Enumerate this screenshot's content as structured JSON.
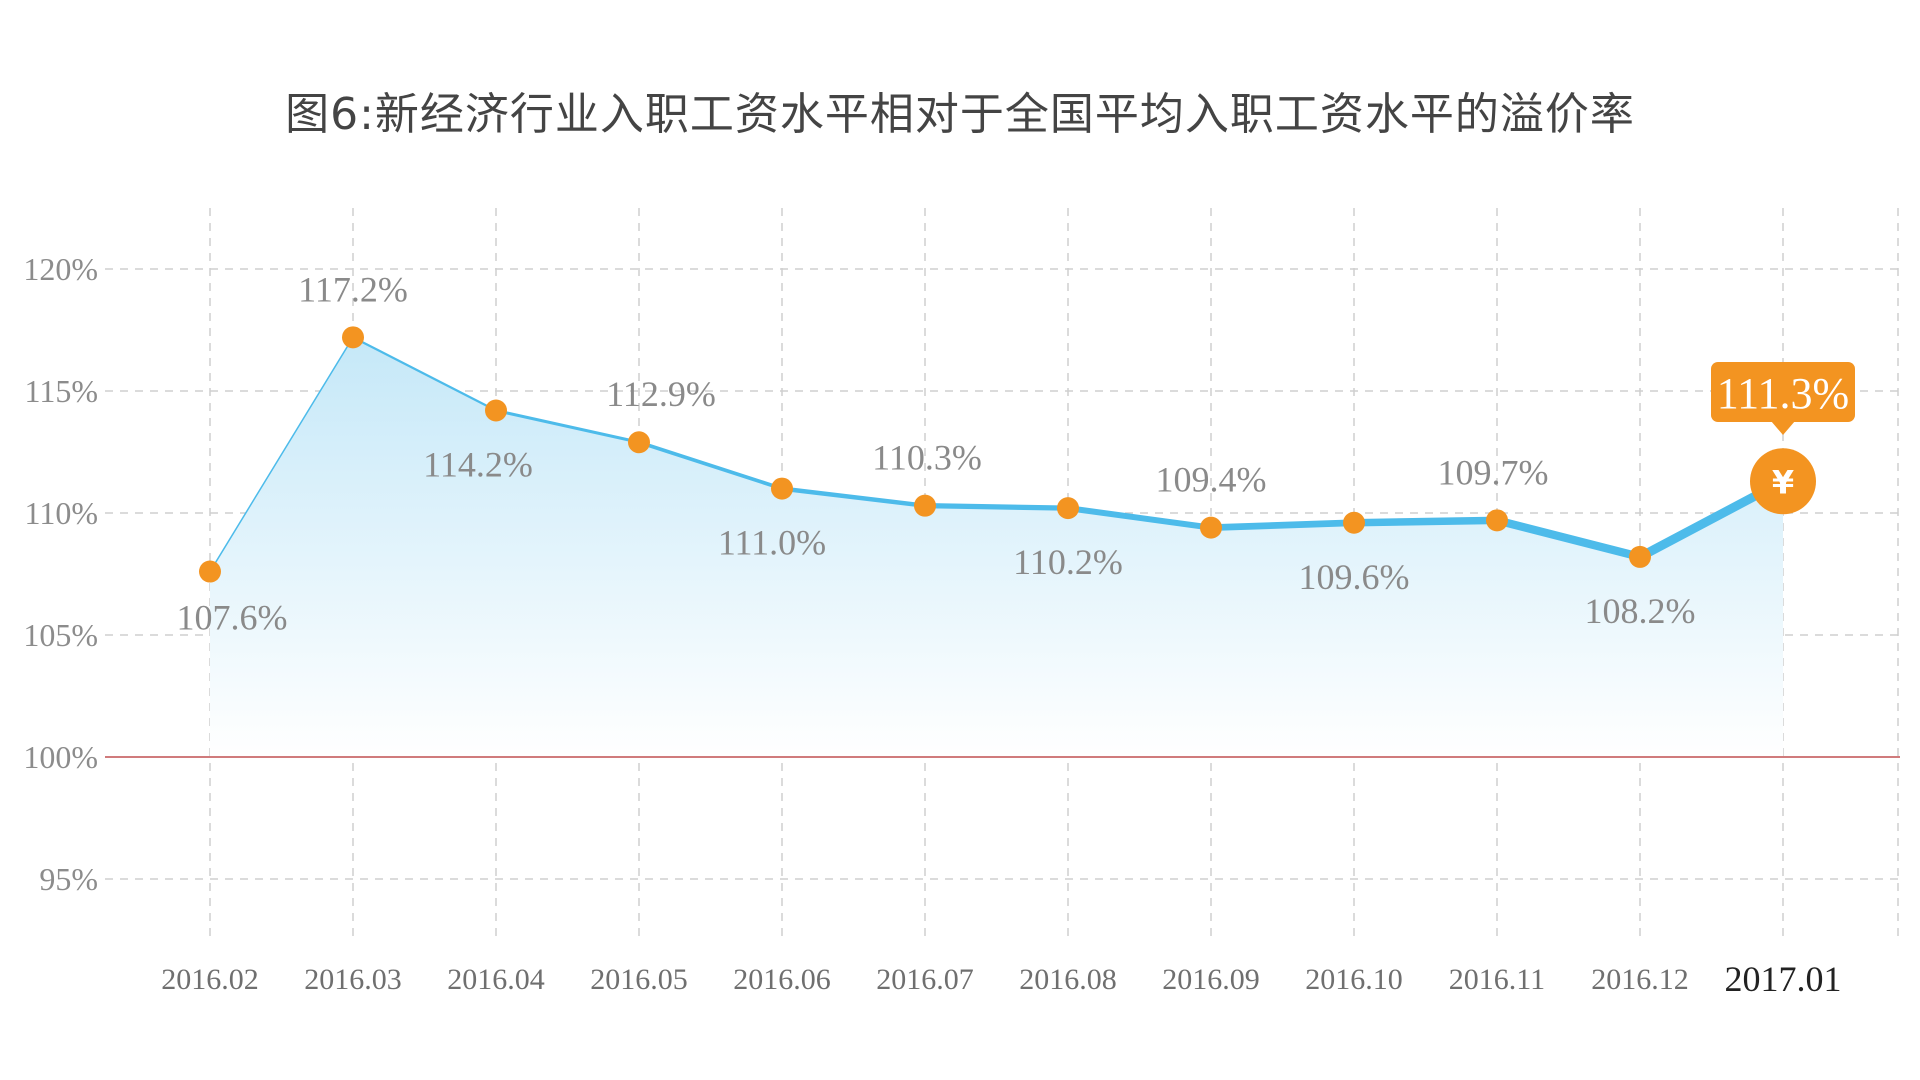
{
  "chart_data": {
    "type": "line",
    "title": "图6:新经济行业入职工资水平相对于全国平均入职工资水平的溢价率",
    "xlabel": "",
    "ylabel": "",
    "categories": [
      "2016.02",
      "2016.03",
      "2016.04",
      "2016.05",
      "2016.06",
      "2016.07",
      "2016.08",
      "2016.09",
      "2016.10",
      "2016.11",
      "2016.12",
      "2017.01"
    ],
    "values": [
      107.6,
      117.2,
      114.2,
      112.9,
      111.0,
      110.3,
      110.2,
      109.4,
      109.6,
      109.7,
      108.2,
      111.3
    ],
    "data_labels": [
      "107.6%",
      "117.2%",
      "114.2%",
      "112.9%",
      "111.0%",
      "110.3%",
      "110.2%",
      "109.4%",
      "109.6%",
      "109.7%",
      "108.2%",
      "111.3%"
    ],
    "yticks": [
      95,
      100,
      105,
      110,
      115,
      120
    ],
    "ytick_labels": [
      "95%",
      "100%",
      "105%",
      "110%",
      "115%",
      "120%"
    ],
    "ylim": [
      92.5,
      122.5
    ],
    "reference_line": 100,
    "grid": true,
    "highlight_icon": "yen-icon",
    "highlight_icon_text": "¥"
  },
  "colors": {
    "line": "#4dbbea",
    "area_top": "#c5e8f8",
    "marker": "#f39421",
    "reference": "#c9686a",
    "callout": "#f39421"
  }
}
